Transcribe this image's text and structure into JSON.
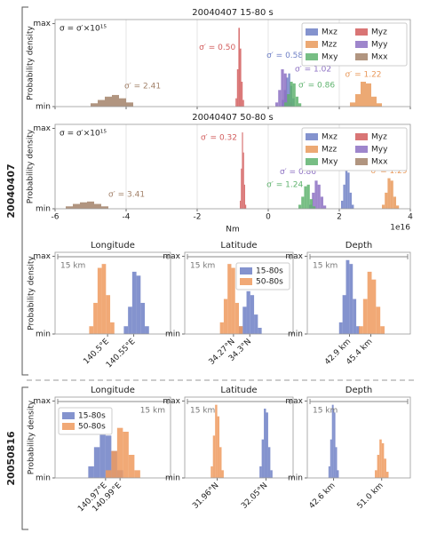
{
  "groups": [
    {
      "label": "20040407"
    },
    {
      "label": "20050816"
    }
  ],
  "chart_data": [
    {
      "type": "histogram",
      "title": "20040407 15-80 s",
      "note": "σ = σ′×10¹⁵",
      "ylabel": "Probability density",
      "xlim": [
        -6,
        4
      ],
      "xticks": [
        -6,
        -4,
        -2,
        0,
        2,
        4
      ],
      "sharex": true,
      "grid": true,
      "legend": "upper right",
      "ylim": [
        0,
        1.05
      ],
      "yticks": [
        {
          "value": 0,
          "label": "min"
        },
        {
          "value": 1,
          "label": "max"
        }
      ],
      "series": [
        {
          "name": "Mxz",
          "color": "#6f80c6",
          "bins": [
            0.38,
            0.44,
            0.5,
            0.56,
            0.62,
            0.68,
            0.74
          ],
          "values": [
            0.08,
            0.2,
            0.35,
            0.4,
            0.25,
            0.1
          ],
          "annotation": "σ′ = 0.58"
        },
        {
          "name": "Myz",
          "color": "#d25d5d",
          "bins": [
            -0.92,
            -0.88,
            -0.84,
            -0.8,
            -0.76,
            -0.72,
            -0.68
          ],
          "values": [
            0.1,
            0.45,
            0.95,
            0.7,
            0.3,
            0.08
          ],
          "annotation": "σ′ = 0.50"
        },
        {
          "name": "Mzz",
          "color": "#e99a5c",
          "bins": [
            2.3,
            2.45,
            2.6,
            2.75,
            2.9,
            3.05,
            3.2
          ],
          "values": [
            0.05,
            0.15,
            0.3,
            0.28,
            0.12,
            0.04
          ],
          "annotation": "σ′ = 1.22"
        },
        {
          "name": "Myy",
          "color": "#8d71c3",
          "bins": [
            0.2,
            0.28,
            0.36,
            0.44,
            0.52,
            0.6,
            0.68
          ],
          "values": [
            0.05,
            0.2,
            0.45,
            0.4,
            0.15,
            0.05
          ],
          "annotation": "σ′ = 1.02"
        },
        {
          "name": "Mxy",
          "color": "#5fb36e",
          "bins": [
            0.45,
            0.53,
            0.61,
            0.69,
            0.77,
            0.85,
            0.93
          ],
          "values": [
            0.05,
            0.15,
            0.3,
            0.28,
            0.12,
            0.04
          ],
          "annotation": "σ′ = 0.86"
        },
        {
          "name": "Mxx",
          "color": "#a3826a",
          "bins": [
            -5.0,
            -4.8,
            -4.6,
            -4.4,
            -4.2,
            -4.0,
            -3.8
          ],
          "values": [
            0.04,
            0.08,
            0.12,
            0.14,
            0.1,
            0.05
          ],
          "annotation": "σ′ = 2.41"
        }
      ]
    },
    {
      "type": "histogram",
      "title": "20040407 50-80 s",
      "note": "σ = σ′×10¹⁵",
      "ylabel": "Probability density",
      "xlabel": "Nm",
      "x_offset_label": "1e16",
      "xlim": [
        -6,
        4
      ],
      "xticks": [
        -6,
        -4,
        -2,
        0,
        2,
        4
      ],
      "grid": true,
      "legend": "upper right",
      "ylim": [
        0,
        1.05
      ],
      "yticks": [
        {
          "value": 0,
          "label": "min"
        },
        {
          "value": 1,
          "label": "max"
        }
      ],
      "series": [
        {
          "name": "Mxz",
          "color": "#6f80c6",
          "bins": [
            2.05,
            2.11,
            2.17,
            2.23,
            2.29,
            2.35,
            2.41
          ],
          "values": [
            0.1,
            0.3,
            0.5,
            0.45,
            0.2,
            0.05
          ],
          "annotation": "σ′ = 0.82"
        },
        {
          "name": "Myz",
          "color": "#d25d5d",
          "bins": [
            -0.8,
            -0.77,
            -0.74,
            -0.71,
            -0.68,
            -0.65,
            -0.62
          ],
          "values": [
            0.1,
            0.5,
            0.95,
            0.7,
            0.3,
            0.05
          ],
          "annotation": "σ′ = 0.32"
        },
        {
          "name": "Mzz",
          "color": "#e99a5c",
          "bins": [
            3.2,
            3.28,
            3.36,
            3.44,
            3.52,
            3.6,
            3.68
          ],
          "values": [
            0.05,
            0.2,
            0.38,
            0.35,
            0.15,
            0.04
          ],
          "annotation": "σ′ = 1.29"
        },
        {
          "name": "Myy",
          "color": "#8d71c3",
          "bins": [
            1.15,
            1.23,
            1.31,
            1.39,
            1.47,
            1.55,
            1.63
          ],
          "values": [
            0.05,
            0.2,
            0.35,
            0.3,
            0.15,
            0.04
          ],
          "annotation": "σ′ = 0.86"
        },
        {
          "name": "Mxy",
          "color": "#5fb36e",
          "bins": [
            0.85,
            0.93,
            1.01,
            1.09,
            1.17,
            1.25,
            1.33
          ],
          "values": [
            0.05,
            0.15,
            0.28,
            0.3,
            0.12,
            0.03
          ],
          "annotation": "σ′ = 1.24"
        },
        {
          "name": "Mxx",
          "color": "#a3826a",
          "bins": [
            -5.7,
            -5.5,
            -5.3,
            -5.1,
            -4.9,
            -4.7,
            -4.5
          ],
          "values": [
            0.03,
            0.06,
            0.08,
            0.09,
            0.06,
            0.03
          ],
          "annotation": "σ′ = 3.41"
        }
      ]
    },
    {
      "type": "histogram",
      "title": "Longitude",
      "ylabel": "Probability density",
      "scale_label": "15 km",
      "xlim": [
        140.4,
        140.62
      ],
      "xticks": [
        {
          "value": 140.5,
          "label": "140.5°E"
        },
        {
          "value": 140.55,
          "label": "140.55°E"
        }
      ],
      "ylim": [
        0,
        1.05
      ],
      "yticks": [
        {
          "value": 0,
          "label": "min"
        },
        {
          "value": 1,
          "label": "max"
        }
      ],
      "series": [
        {
          "color": "#6f80c6",
          "bins": [
            140.531,
            140.539,
            140.547,
            140.555,
            140.563,
            140.571,
            140.579
          ],
          "values": [
            0.1,
            0.35,
            0.8,
            0.75,
            0.4,
            0.1
          ]
        },
        {
          "color": "#ef9a5e",
          "bins": [
            140.465,
            140.473,
            140.481,
            140.489,
            140.497,
            140.505,
            140.513
          ],
          "values": [
            0.1,
            0.4,
            0.85,
            0.9,
            0.5,
            0.15
          ]
        }
      ]
    },
    {
      "type": "histogram",
      "title": "Latitude",
      "scale_label": "15 km",
      "legend": "upper right",
      "xlim": [
        34.18,
        34.38
      ],
      "xticks": [
        {
          "value": 34.27,
          "label": "34.27°N"
        },
        {
          "value": 34.3,
          "label": "34.3°N"
        }
      ],
      "ylim": [
        0,
        1.05
      ],
      "yticks": [
        {
          "value": 0,
          "label": "min"
        },
        {
          "value": 1,
          "label": "max"
        }
      ],
      "series": [
        {
          "name": "15-80s",
          "color": "#6f80c6",
          "bins": [
            34.28,
            34.287,
            34.294,
            34.301,
            34.308,
            34.315,
            34.322
          ],
          "values": [
            0.1,
            0.35,
            0.55,
            0.5,
            0.25,
            0.08
          ]
        },
        {
          "name": "50-80s",
          "color": "#ef9a5e",
          "bins": [
            34.245,
            34.252,
            34.259,
            34.266,
            34.273,
            34.28,
            34.287
          ],
          "values": [
            0.15,
            0.45,
            0.9,
            0.85,
            0.4,
            0.1
          ]
        }
      ]
    },
    {
      "type": "histogram",
      "title": "Depth",
      "scale_label": "15 km",
      "xlim": [
        38,
        50
      ],
      "xticks": [
        {
          "value": 42.9,
          "label": "42.9 km"
        },
        {
          "value": 45.4,
          "label": "45.4 km"
        }
      ],
      "ylim": [
        0,
        1.05
      ],
      "yticks": [
        {
          "value": 0,
          "label": "min"
        },
        {
          "value": 1,
          "label": "max"
        }
      ],
      "series": [
        {
          "color": "#6f80c6",
          "bins": [
            41.7,
            42.1,
            42.5,
            42.9,
            43.3,
            43.7,
            44.1
          ],
          "values": [
            0.15,
            0.5,
            0.95,
            0.9,
            0.45,
            0.1
          ]
        },
        {
          "color": "#ef9a5e",
          "bins": [
            44.0,
            44.5,
            45.0,
            45.5,
            46.0,
            46.5,
            47.0
          ],
          "values": [
            0.1,
            0.45,
            0.8,
            0.7,
            0.35,
            0.1
          ]
        }
      ]
    },
    {
      "type": "histogram",
      "title": "Longitude",
      "ylabel": "Probability density",
      "scale_label": "15 km",
      "legend": "upper left",
      "xlim": [
        140.9,
        141.06
      ],
      "xticks": [
        {
          "value": 140.97,
          "label": "140.97°E"
        },
        {
          "value": 140.99,
          "label": "140.99°E"
        }
      ],
      "ylim": [
        0,
        1.05
      ],
      "yticks": [
        {
          "value": 0,
          "label": "min"
        },
        {
          "value": 1,
          "label": "max"
        }
      ],
      "series": [
        {
          "name": "15-80s",
          "color": "#6f80c6",
          "bins": [
            140.946,
            140.954,
            140.962,
            140.97,
            140.978,
            140.986,
            140.994
          ],
          "values": [
            0.15,
            0.4,
            0.6,
            0.55,
            0.35,
            0.1
          ]
        },
        {
          "name": "50-80s",
          "color": "#ef9a5e",
          "bins": [
            140.97,
            140.978,
            140.986,
            140.994,
            141.002,
            141.01,
            141.018
          ],
          "values": [
            0.1,
            0.35,
            0.65,
            0.6,
            0.3,
            0.1
          ]
        }
      ]
    },
    {
      "type": "histogram",
      "title": "Latitude",
      "scale_label": "15 km",
      "xlim": [
        31.9,
        32.1
      ],
      "xticks": [
        {
          "value": 31.96,
          "label": "31.96°N"
        },
        {
          "value": 32.05,
          "label": "32.05°N"
        }
      ],
      "ylim": [
        0,
        1.05
      ],
      "yticks": [
        {
          "value": 0,
          "label": "min"
        },
        {
          "value": 1,
          "label": "max"
        }
      ],
      "series": [
        {
          "color": "#6f80c6",
          "bins": [
            32.038,
            32.042,
            32.046,
            32.05,
            32.054,
            32.058,
            32.062
          ],
          "values": [
            0.15,
            0.5,
            0.9,
            0.85,
            0.4,
            0.1
          ]
        },
        {
          "color": "#ef9a5e",
          "bins": [
            31.948,
            31.952,
            31.956,
            31.96,
            31.964,
            31.968,
            31.972
          ],
          "values": [
            0.15,
            0.55,
            0.95,
            0.8,
            0.4,
            0.1
          ]
        }
      ]
    },
    {
      "type": "histogram",
      "title": "Depth",
      "scale_label": "15 km",
      "xlim": [
        38,
        56
      ],
      "xticks": [
        {
          "value": 42.6,
          "label": "42.6 km"
        },
        {
          "value": 51.0,
          "label": "51.0 km"
        }
      ],
      "ylim": [
        0,
        1.05
      ],
      "yticks": [
        {
          "value": 0,
          "label": "min"
        },
        {
          "value": 1,
          "label": "max"
        }
      ],
      "series": [
        {
          "color": "#6f80c6",
          "bins": [
            41.7,
            42.0,
            42.3,
            42.6,
            42.9,
            43.2,
            43.5
          ],
          "values": [
            0.15,
            0.5,
            0.95,
            0.85,
            0.4,
            0.1
          ]
        },
        {
          "color": "#ef9a5e",
          "bins": [
            49.8,
            50.2,
            50.6,
            51.0,
            51.4,
            51.8,
            52.2
          ],
          "values": [
            0.1,
            0.3,
            0.5,
            0.45,
            0.25,
            0.08
          ]
        }
      ]
    }
  ]
}
